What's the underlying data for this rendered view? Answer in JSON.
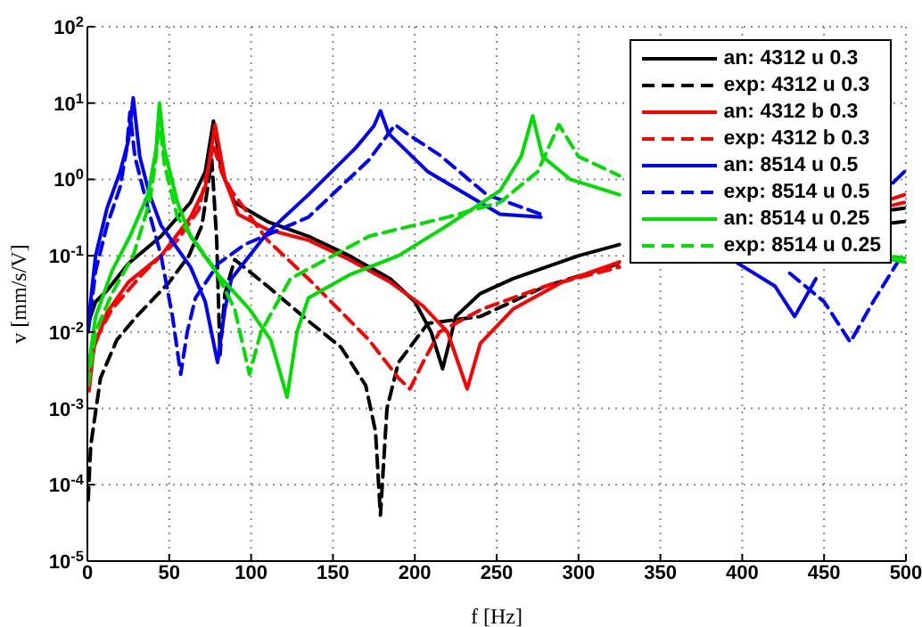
{
  "chart_data": {
    "type": "line",
    "xlabel": "f [Hz]",
    "ylabel": "v [mm/s/V]",
    "log": "y",
    "grid": true,
    "legend": "top right",
    "xlim": [
      0,
      500
    ],
    "xticks": [
      0,
      50,
      100,
      150,
      200,
      250,
      300,
      350,
      400,
      450,
      500
    ],
    "ylim": [
      1e-05,
      100
    ],
    "yticks": [
      {
        "value": 1e-05,
        "label": "10$^{-5}$"
      },
      {
        "value": 0.0001,
        "label": "10$^{-4}$"
      },
      {
        "value": 0.001,
        "label": "10$^{-3}$"
      },
      {
        "value": 0.01,
        "label": "10$^{-2}$"
      },
      {
        "value": 0.1,
        "label": "10$^{-1}$"
      },
      {
        "value": 1,
        "label": "10$^{0}$"
      },
      {
        "value": 10,
        "label": "10$^{1}$"
      },
      {
        "value": 100,
        "label": "10$^{2}$"
      }
    ],
    "series": [
      {
        "name": "an: 4312 u 0.3",
        "color": "#000000",
        "line_style": "solid",
        "x": [
          1,
          5,
          12,
          25,
          45,
          63,
          72,
          77,
          82,
          90,
          110,
          135,
          160,
          185,
          200,
          210,
          217,
          225,
          240,
          260,
          300,
          325,
          360,
          400,
          450,
          492,
          499
        ],
        "values": [
          0.014,
          0.025,
          0.035,
          0.079,
          0.18,
          0.5,
          1.26,
          5.8,
          1.26,
          0.5,
          0.28,
          0.18,
          0.1,
          0.05,
          0.025,
          0.01,
          0.0033,
          0.016,
          0.032,
          0.05,
          0.1,
          0.14,
          null,
          null,
          null,
          0.4,
          0.42
        ]
      },
      {
        "name": "exp: 4312 u 0.3",
        "color": "#000000",
        "line_style": "dashed",
        "x": [
          0.5,
          2,
          8,
          18,
          30,
          50,
          62,
          70,
          76,
          79,
          81,
          84,
          90,
          110,
          135,
          155,
          170,
          176,
          179,
          183,
          190,
          208,
          240,
          280,
          325,
          380,
          440,
          492,
          499
        ],
        "values": [
          6.3e-05,
          0.00032,
          0.0025,
          0.0079,
          0.016,
          0.045,
          0.1,
          0.25,
          1.8,
          0.16,
          0.005,
          0.032,
          0.089,
          0.04,
          0.014,
          0.0063,
          0.002,
          0.0005,
          4e-05,
          0.001,
          0.004,
          0.013,
          0.016,
          0.04,
          0.079,
          null,
          null,
          0.27,
          0.28
        ]
      },
      {
        "name": "an: 4312 b 0.3",
        "color": "#ff0000",
        "line_style": "solid",
        "x": [
          1,
          4,
          12,
          25,
          45,
          63,
          72,
          78,
          84,
          92,
          110,
          135,
          160,
          185,
          205,
          220,
          232,
          240,
          260,
          290,
          325,
          370,
          420,
          460,
          492,
          499
        ],
        "values": [
          0.0017,
          0.0063,
          0.018,
          0.045,
          0.1,
          0.32,
          0.79,
          5.2,
          1,
          0.35,
          0.22,
          0.16,
          0.089,
          0.045,
          0.022,
          0.01,
          0.0018,
          0.0071,
          0.02,
          0.045,
          0.083,
          null,
          null,
          null,
          0.46,
          0.5
        ]
      },
      {
        "name": "exp: 4312 b 0.3",
        "color": "#ff0000",
        "line_style": "dashed",
        "x": [
          0.5,
          5,
          15,
          34,
          55,
          68,
          77,
          82,
          88,
          110,
          135,
          172,
          190,
          197,
          205,
          215,
          241,
          280,
          325,
          380,
          440,
          492,
          499
        ],
        "values": [
          0.0025,
          0.0079,
          0.02,
          0.059,
          0.16,
          0.4,
          2.8,
          1.26,
          0.71,
          0.16,
          0.05,
          0.0079,
          0.0025,
          0.0018,
          0.004,
          0.01,
          0.02,
          0.04,
          0.071,
          null,
          null,
          0.56,
          0.63
        ]
      },
      {
        "name": "an: 8514 u 0.5",
        "color": "#0000ff",
        "line_style": "solid",
        "x": [
          0.5,
          5,
          12,
          20,
          25,
          28,
          32,
          38,
          45,
          63,
          72,
          79.5,
          84,
          88,
          110,
          135,
          164,
          175,
          179,
          184,
          208,
          252,
          277,
          330,
          396,
          420,
          432,
          445,
          459,
          480,
          492,
          499
        ],
        "values": [
          0.013,
          0.1,
          0.42,
          1.26,
          3.2,
          11.7,
          2,
          0.63,
          0.25,
          0.071,
          0.025,
          0.004,
          0.02,
          0.05,
          0.2,
          0.63,
          2.6,
          5,
          7.9,
          4,
          1.26,
          0.35,
          0.32,
          null,
          0.083,
          0.04,
          0.016,
          0.05,
          null,
          null,
          0.9,
          1.26
        ]
      },
      {
        "name": "exp: 8514 u 0.5",
        "color": "#0000ff",
        "line_style": "dashed",
        "x": [
          0.5,
          5,
          12,
          20,
          24,
          26,
          29,
          37,
          45,
          52,
          57,
          61,
          66,
          80,
          96,
          135,
          172,
          184,
          188,
          195,
          215,
          244,
          277,
          330,
          400,
          429,
          450,
          466,
          480,
          495
        ],
        "values": [
          0.01,
          0.063,
          0.25,
          0.79,
          2.5,
          7.6,
          2,
          0.42,
          0.1,
          0.016,
          0.0028,
          0.01,
          0.028,
          0.079,
          0.14,
          0.32,
          1.8,
          4,
          5.2,
          4,
          2.1,
          0.63,
          0.35,
          null,
          null,
          0.059,
          0.025,
          0.0074,
          0.025,
          0.083
        ]
      },
      {
        "name": "an: 8514 u 0.25",
        "color": "#00dd00",
        "line_style": "solid",
        "x": [
          0.5,
          5,
          15,
          26,
          37,
          42,
          44,
          47,
          55,
          63,
          80,
          99,
          112,
          122,
          128,
          135,
          160,
          190,
          220,
          252,
          265,
          272,
          278,
          295,
          325,
          400,
          460,
          492,
          499
        ],
        "values": [
          0.0032,
          0.016,
          0.063,
          0.18,
          0.63,
          2.5,
          10,
          2.5,
          0.5,
          0.18,
          0.056,
          0.02,
          0.0079,
          0.0014,
          0.01,
          0.028,
          0.056,
          0.1,
          0.25,
          0.71,
          2,
          6.8,
          2,
          1,
          0.63,
          null,
          null,
          0.097,
          0.093
        ]
      },
      {
        "name": "exp: 8514 u 0.25",
        "color": "#00dd00",
        "line_style": "dashed",
        "x": [
          0.5,
          5,
          15,
          28,
          38,
          42,
          44,
          47,
          55,
          77,
          90,
          99,
          106,
          124,
          172,
          220,
          252,
          275,
          288,
          300,
          325,
          400,
          460,
          492,
          499
        ],
        "values": [
          0.002,
          0.01,
          0.032,
          0.1,
          0.5,
          2,
          6.3,
          1.6,
          0.32,
          0.071,
          0.02,
          0.0028,
          0.01,
          0.05,
          0.18,
          0.32,
          0.5,
          1.26,
          5.2,
          2,
          1.12,
          null,
          null,
          0.088,
          0.083
        ]
      }
    ]
  }
}
